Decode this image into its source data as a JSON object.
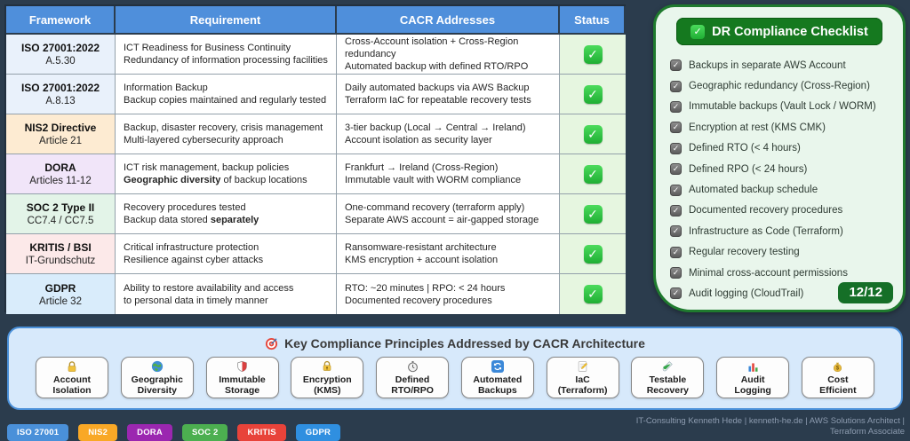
{
  "colors": {
    "page_bg": "#2b3c4d",
    "table_header_bg": "#4f8fdb",
    "status_cell_bg": "#e6f6e0",
    "panel_bg": "#e9f6ec",
    "panel_green": "#1b7a2e",
    "bottom_bg": "#d7e9fb",
    "bottom_border": "#4a90d9"
  },
  "table": {
    "headers": [
      "Framework",
      "Requirement",
      "CACR Addresses",
      "Status"
    ],
    "rows": [
      {
        "framework": "ISO 27001:2022",
        "article": "A.5.30",
        "bg": "#e9f1fb",
        "requirement": [
          [
            {
              "t": "ICT Readiness for Business Continuity"
            }
          ],
          [
            {
              "t": "Redundancy of information processing facilities"
            }
          ]
        ],
        "cacr": [
          [
            {
              "t": "Cross-Account isolation + Cross-Region redundancy"
            }
          ],
          [
            {
              "t": "Automated backup with defined RTO/RPO"
            }
          ]
        ],
        "status": "checked"
      },
      {
        "framework": "ISO 27001:2022",
        "article": "A.8.13",
        "bg": "#e9f1fb",
        "requirement": [
          [
            {
              "t": "Information Backup"
            }
          ],
          [
            {
              "t": "Backup copies maintained and regularly tested"
            }
          ]
        ],
        "cacr": [
          [
            {
              "t": "Daily automated backups via AWS Backup"
            }
          ],
          [
            {
              "t": "Terraform IaC for repeatable recovery tests"
            }
          ]
        ],
        "status": "checked"
      },
      {
        "framework": "NIS2 Directive",
        "article": "Article 21",
        "bg": "#fdebd2",
        "requirement": [
          [
            {
              "t": "Backup, disaster recovery, crisis management"
            }
          ],
          [
            {
              "t": "Multi-layered cybersecurity approach"
            }
          ]
        ],
        "cacr": [
          [
            {
              "t": "3-tier backup (Local → Central → Ireland)"
            }
          ],
          [
            {
              "t": "Account isolation as security layer"
            }
          ]
        ],
        "status": "checked"
      },
      {
        "framework": "DORA",
        "article": "Articles 11-12",
        "bg": "#f1e5f9",
        "requirement": [
          [
            {
              "t": "ICT risk management, backup policies"
            }
          ],
          [
            {
              "t": "Geographic diversity",
              "b": true
            },
            {
              "t": " of backup locations"
            }
          ]
        ],
        "cacr": [
          [
            {
              "t": "Frankfurt → Ireland (Cross-Region)"
            }
          ],
          [
            {
              "t": "Immutable vault with WORM compliance"
            }
          ]
        ],
        "status": "checked"
      },
      {
        "framework": "SOC 2 Type II",
        "article": "CC7.4 / CC7.5",
        "bg": "#e3f4e8",
        "requirement": [
          [
            {
              "t": "Recovery procedures tested"
            }
          ],
          [
            {
              "t": "Backup data stored "
            },
            {
              "t": "separately",
              "b": true
            }
          ]
        ],
        "cacr": [
          [
            {
              "t": "One-command recovery (terraform apply)"
            }
          ],
          [
            {
              "t": "Separate AWS account = air-gapped storage"
            }
          ]
        ],
        "status": "checked"
      },
      {
        "framework": "KRITIS / BSI",
        "article": "IT-Grundschutz",
        "bg": "#fce9e9",
        "requirement": [
          [
            {
              "t": "Critical infrastructure protection"
            }
          ],
          [
            {
              "t": "Resilience against cyber attacks"
            }
          ]
        ],
        "cacr": [
          [
            {
              "t": "Ransomware-resistant architecture"
            }
          ],
          [
            {
              "t": "KMS encryption + account isolation"
            }
          ]
        ],
        "status": "checked"
      },
      {
        "framework": "GDPR",
        "article": "Article 32",
        "bg": "#d9ecfb",
        "requirement": [
          [
            {
              "t": "Ability to restore availability and access"
            }
          ],
          [
            {
              "t": "to personal data in timely manner"
            }
          ]
        ],
        "cacr": [
          [
            {
              "t": "RTO: ~20 minutes | RPO: < 24 hours"
            }
          ],
          [
            {
              "t": "Documented recovery procedures"
            }
          ]
        ],
        "status": "checked"
      }
    ]
  },
  "checklist": {
    "title": "DR Compliance Checklist",
    "items": [
      "Backups in separate AWS Account",
      "Geographic redundancy (Cross-Region)",
      "Immutable backups (Vault Lock / WORM)",
      "Encryption at rest (KMS CMK)",
      "Defined RTO (< 4 hours)",
      "Defined RPO (< 24 hours)",
      "Automated backup schedule",
      "Documented recovery procedures",
      "Infrastructure as Code (Terraform)",
      "Regular recovery testing",
      "Minimal cross-account permissions",
      "Audit logging (CloudTrail)"
    ],
    "score": "12/12"
  },
  "principles": {
    "title": "Key Compliance Principles Addressed by CACR Architecture",
    "cards": [
      {
        "icon": "padlock-icon",
        "lines": [
          "Account",
          "Isolation"
        ]
      },
      {
        "icon": "globe-icon",
        "lines": [
          "Geographic",
          "Diversity"
        ]
      },
      {
        "icon": "shield-icon",
        "lines": [
          "Immutable",
          "Storage"
        ]
      },
      {
        "icon": "padlock-key-icon",
        "lines": [
          "Encryption",
          "(KMS)"
        ]
      },
      {
        "icon": "stopwatch-icon",
        "lines": [
          "Defined",
          "RTO/RPO"
        ]
      },
      {
        "icon": "sync-icon",
        "lines": [
          "Automated",
          "Backups"
        ]
      },
      {
        "icon": "memo-icon",
        "lines": [
          "IaC",
          "(Terraform)"
        ]
      },
      {
        "icon": "test-tube-icon",
        "lines": [
          "Testable",
          "Recovery"
        ]
      },
      {
        "icon": "bar-chart-icon",
        "lines": [
          "Audit",
          "Logging"
        ]
      },
      {
        "icon": "money-bag-icon",
        "lines": [
          "Cost",
          "Efficient"
        ]
      }
    ]
  },
  "footer": {
    "badges": [
      {
        "label": "ISO 27001",
        "color": "#4a90d9"
      },
      {
        "label": "NIS2",
        "color": "#f9a826"
      },
      {
        "label": "DORA",
        "color": "#9b27b0"
      },
      {
        "label": "SOC 2",
        "color": "#4caf50"
      },
      {
        "label": "KRITIS",
        "color": "#e8433a"
      },
      {
        "label": "GDPR",
        "color": "#2f8fe0"
      }
    ],
    "credit": "IT-Consulting Kenneth Hede | kenneth-he.de | AWS Solutions Architect | Terraform Associate"
  }
}
